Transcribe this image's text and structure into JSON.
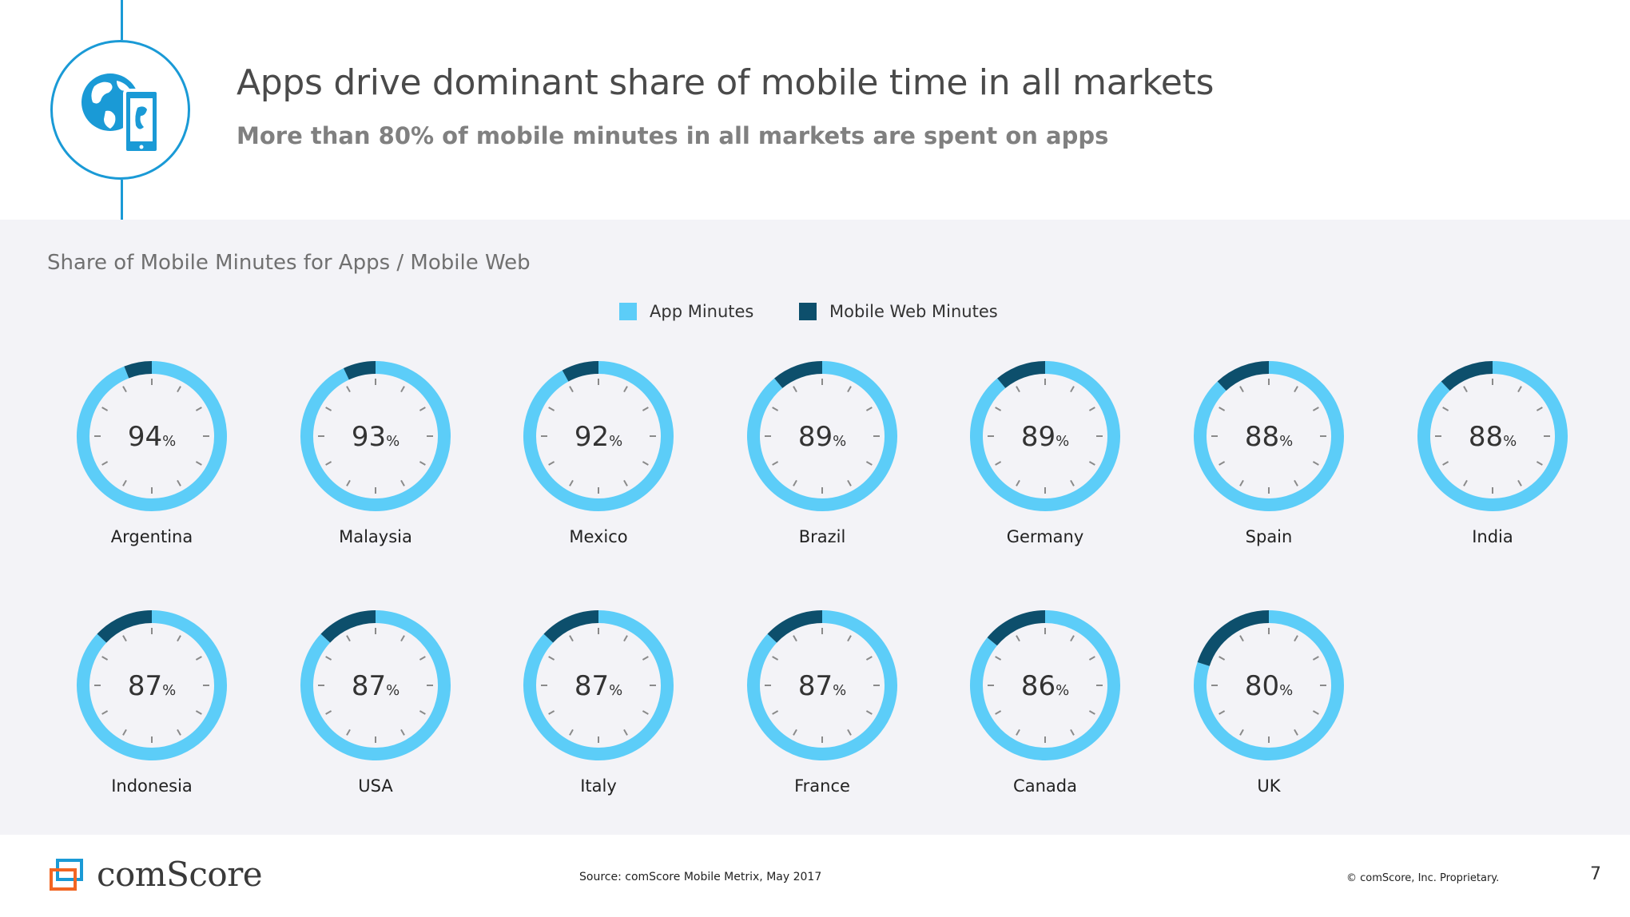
{
  "header": {
    "title": "Apps drive dominant share of mobile time in all markets",
    "subtitle": "More than 80% of mobile minutes in all markets are spent on apps"
  },
  "chart_data": {
    "type": "pie",
    "title": "Share of Mobile Minutes for Apps / Mobile Web",
    "series": [
      {
        "name": "App Minutes",
        "color": "#5ccdf8"
      },
      {
        "name": "Mobile Web Minutes",
        "color": "#0d4f6c"
      }
    ],
    "unit": "%",
    "items": [
      {
        "country": "Argentina",
        "value": 94
      },
      {
        "country": "Malaysia",
        "value": 93
      },
      {
        "country": "Mexico",
        "value": 92
      },
      {
        "country": "Brazil",
        "value": 89
      },
      {
        "country": "Germany",
        "value": 89
      },
      {
        "country": "Spain",
        "value": 88
      },
      {
        "country": "India",
        "value": 88
      },
      {
        "country": "Indonesia",
        "value": 87
      },
      {
        "country": "USA",
        "value": 87
      },
      {
        "country": "Italy",
        "value": 87
      },
      {
        "country": "France",
        "value": 87
      },
      {
        "country": "Canada",
        "value": 86
      },
      {
        "country": "UK",
        "value": 80
      }
    ]
  },
  "footer": {
    "brand": "comScore",
    "source": "Source: comScore Mobile Metrix, May 2017",
    "copyright": "© comScore, Inc. Proprietary.",
    "page": "7"
  },
  "colors": {
    "accent": "#1a9ad6",
    "app": "#5ccdf8",
    "web": "#0d4f6c",
    "logo_blue": "#1a9ad6",
    "logo_orange": "#f26522"
  },
  "icons": {
    "header": "globe-phone-icon",
    "logo": "comscore-logo-icon"
  }
}
